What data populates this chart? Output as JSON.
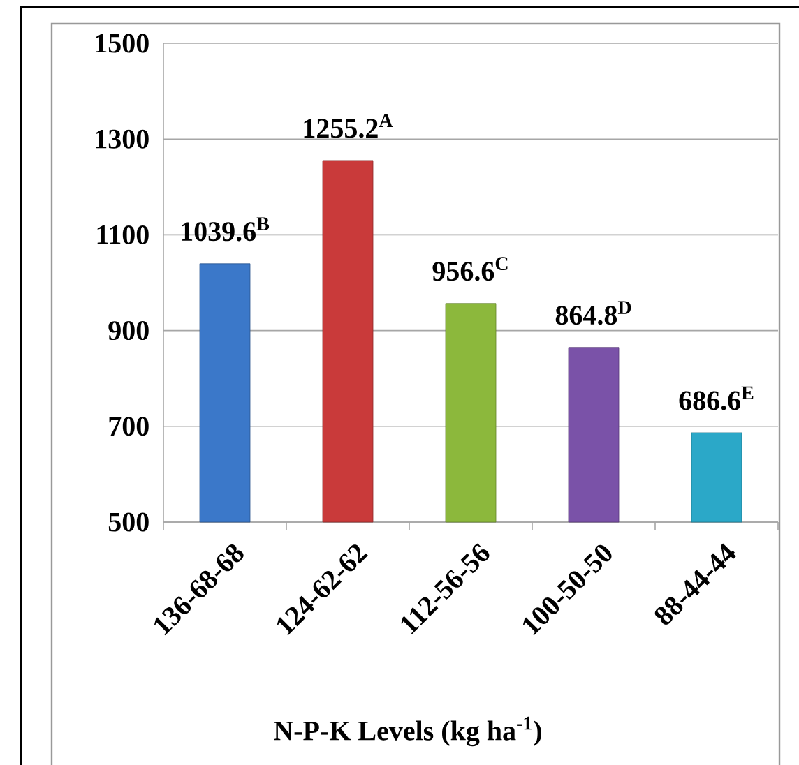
{
  "chart_data": {
    "type": "bar",
    "xlabel": "N-P-K Levels (kg ha$^{-1}$)",
    "categories": [
      "136-68-68",
      "124-62-62",
      "112-56-56",
      "100-50-50",
      "88-44-44"
    ],
    "values": [
      1039.6,
      1255.2,
      956.6,
      864.8,
      686.6
    ],
    "colors": [
      "#3b78c9",
      "#c93a3a",
      "#8cb83c",
      "#7a52a8",
      "#2ba8c8"
    ],
    "value_labels": [
      "1039.6$^{B}$",
      "1255.2$^{A}$",
      "956.6$^{C}$",
      "864.8$^{D}$",
      "686.6$^{E}$"
    ],
    "ylim": [
      500,
      1500
    ],
    "yticks": [
      500,
      700,
      900,
      1100,
      1300,
      1500
    ],
    "grid": "y"
  }
}
